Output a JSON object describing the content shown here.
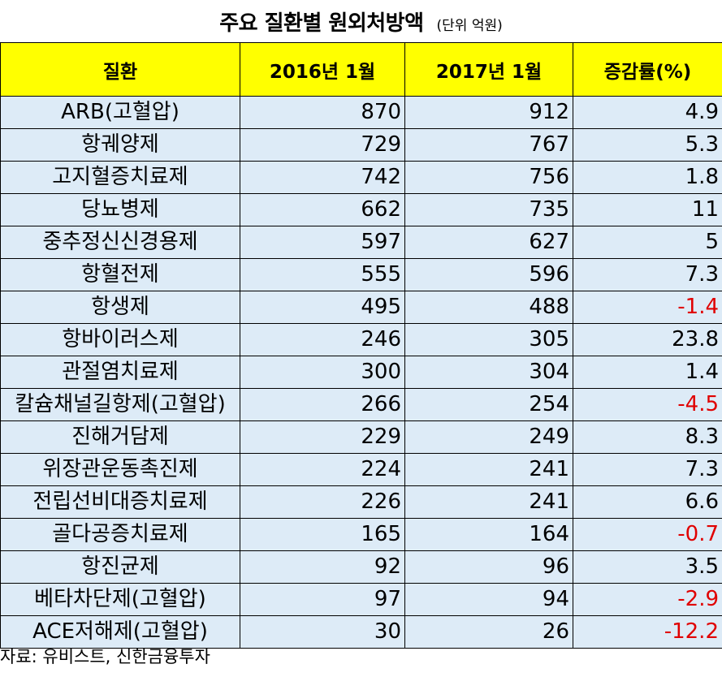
{
  "title": "주요 질환별 원외처방액",
  "unit": "(단위 억원)",
  "source": "자료: 유비스트, 신한금융투자",
  "chart_data": {
    "type": "table",
    "title": "주요 질환별 원외처방액",
    "unit": "(단위 억원)",
    "columns": [
      "질환",
      "2016년 1월",
      "2017년 1월",
      "증감률(%)"
    ],
    "rows": [
      [
        "ARB(고혈압)",
        "870",
        "912",
        "4.9"
      ],
      [
        "항궤양제",
        "729",
        "767",
        "5.3"
      ],
      [
        "고지혈증치료제",
        "742",
        "756",
        "1.8"
      ],
      [
        "당뇨병제",
        "662",
        "735",
        "11"
      ],
      [
        "중추정신신경용제",
        "597",
        "627",
        "5"
      ],
      [
        "항혈전제",
        "555",
        "596",
        "7.3"
      ],
      [
        "항생제",
        "495",
        "488",
        "-1.4"
      ],
      [
        "항바이러스제",
        "246",
        "305",
        "23.8"
      ],
      [
        "관절염치료제",
        "300",
        "304",
        "1.4"
      ],
      [
        "칼슘채널길항제(고혈압)",
        "266",
        "254",
        "-4.5"
      ],
      [
        "진해거담제",
        "229",
        "249",
        "8.3"
      ],
      [
        "위장관운동촉진제",
        "224",
        "241",
        "7.3"
      ],
      [
        "전립선비대증치료제",
        "226",
        "241",
        "6.6"
      ],
      [
        "골다공증치료제",
        "165",
        "164",
        "-0.7"
      ],
      [
        "항진균제",
        "92",
        "96",
        "3.5"
      ],
      [
        "베타차단제(고혈압)",
        "97",
        "94",
        "-2.9"
      ],
      [
        "ACE저해제(고혈압)",
        "30",
        "26",
        "-12.2"
      ]
    ],
    "negative_color": "#e00000",
    "header_color": "#ffff00",
    "row_color": "#ddebf7"
  }
}
